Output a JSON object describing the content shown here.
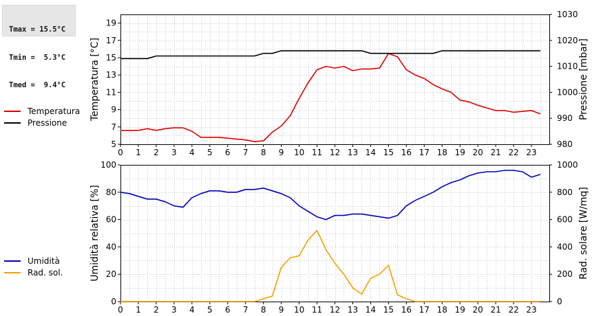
{
  "stats": {
    "lines": [
      "Tmax = 15.5°C",
      "Tmin =  5.3°C",
      "Tmed =  9.4°C"
    ]
  },
  "legend_top": [
    {
      "label": "Temperatura",
      "color": "#dd0000"
    },
    {
      "label": "Pressione",
      "color": "#000000"
    }
  ],
  "legend_bottom": [
    {
      "label": "Umidità",
      "color": "#0000bb"
    },
    {
      "label": "Rad. sol.",
      "color": "#f0a000"
    }
  ],
  "chart_data": [
    {
      "type": "line",
      "ylabel": "Temperatura [°C]",
      "y2label": "Pressione [mbar]",
      "xlim": [
        0,
        24
      ],
      "ylim": [
        5,
        20
      ],
      "y2lim": [
        980,
        1030
      ],
      "xticks": [
        0,
        1,
        2,
        3,
        4,
        5,
        6,
        7,
        8,
        9,
        10,
        11,
        12,
        13,
        14,
        15,
        16,
        17,
        18,
        19,
        20,
        21,
        22,
        23
      ],
      "yticks": [
        5,
        7,
        9,
        11,
        13,
        15,
        17,
        19
      ],
      "y2ticks": [
        980,
        990,
        1000,
        1010,
        1020,
        1030
      ],
      "grid": true,
      "series": [
        {
          "name": "Temperatura",
          "axis": "left",
          "color": "#dd0000",
          "x": [
            0,
            0.5,
            1,
            1.5,
            2,
            2.5,
            3,
            3.5,
            4,
            4.5,
            5,
            5.5,
            6,
            6.5,
            7,
            7.5,
            8,
            8.5,
            9,
            9.5,
            10,
            10.5,
            11,
            11.5,
            12,
            12.5,
            13,
            13.5,
            14,
            14.5,
            15,
            15.5,
            16,
            16.5,
            17,
            17.5,
            18,
            18.5,
            19,
            19.5,
            20,
            20.5,
            21,
            21.5,
            22,
            22.5,
            23,
            23.5
          ],
          "y": [
            6.6,
            6.6,
            6.6,
            6.8,
            6.6,
            6.8,
            6.9,
            6.9,
            6.5,
            5.8,
            5.8,
            5.8,
            5.7,
            5.6,
            5.5,
            5.3,
            5.4,
            6.4,
            7.1,
            8.3,
            10.3,
            12.1,
            13.6,
            14.0,
            13.8,
            14.0,
            13.5,
            13.7,
            13.7,
            13.8,
            15.5,
            15.1,
            13.6,
            13.0,
            12.6,
            11.9,
            11.4,
            11.0,
            10.1,
            9.9,
            9.5,
            9.2,
            8.9,
            8.9,
            8.7,
            8.8,
            8.9,
            8.5
          ]
        },
        {
          "name": "Pressione",
          "axis": "right",
          "color": "#000000",
          "x": [
            0,
            1,
            1.5,
            2,
            3,
            4,
            5,
            6,
            7,
            7.5,
            8,
            8.5,
            9,
            10,
            11,
            12,
            13,
            13.5,
            14,
            15,
            16,
            17,
            17.5,
            18,
            19,
            20,
            21,
            22,
            23,
            23.5
          ],
          "y": [
            1013,
            1013,
            1013,
            1014,
            1014,
            1014,
            1014,
            1014,
            1014,
            1014,
            1015,
            1015,
            1016,
            1016,
            1016,
            1016,
            1016,
            1016,
            1015,
            1015,
            1015,
            1015,
            1015,
            1016,
            1016,
            1016,
            1016,
            1016,
            1016,
            1016
          ]
        }
      ]
    },
    {
      "type": "line",
      "ylabel": "Umidità relativa [%]",
      "y2label": "Rad. solare [W/mq]",
      "xlim": [
        0,
        24
      ],
      "ylim": [
        0,
        100
      ],
      "y2lim": [
        0,
        1000
      ],
      "xticks": [
        0,
        1,
        2,
        3,
        4,
        5,
        6,
        7,
        8,
        9,
        10,
        11,
        12,
        13,
        14,
        15,
        16,
        17,
        18,
        19,
        20,
        21,
        22,
        23
      ],
      "yticks": [
        0,
        20,
        40,
        60,
        80,
        100
      ],
      "y2ticks": [
        0,
        200,
        400,
        600,
        800,
        1000
      ],
      "grid": true,
      "series": [
        {
          "name": "Umidità",
          "axis": "left",
          "color": "#0000bb",
          "x": [
            0,
            0.5,
            1,
            1.5,
            2,
            2.5,
            3,
            3.5,
            4,
            4.5,
            5,
            5.5,
            6,
            6.5,
            7,
            7.5,
            8,
            8.5,
            9,
            9.5,
            10,
            10.5,
            11,
            11.5,
            12,
            12.5,
            13,
            13.5,
            14,
            14.5,
            15,
            15.5,
            16,
            16.5,
            17,
            17.5,
            18,
            18.5,
            19,
            19.5,
            20,
            20.5,
            21,
            21.5,
            22,
            22.5,
            23,
            23.5
          ],
          "y": [
            80,
            79,
            77,
            75,
            75,
            73,
            70,
            69,
            76,
            79,
            81,
            81,
            80,
            80,
            82,
            82,
            83,
            81,
            79,
            76,
            70,
            66,
            62,
            60,
            63,
            63,
            64,
            64,
            63,
            62,
            61,
            63,
            70,
            74,
            77,
            80,
            84,
            87,
            89,
            92,
            94,
            95,
            95,
            96,
            96,
            95,
            91,
            93
          ]
        },
        {
          "name": "Rad. sol.",
          "axis": "right",
          "color": "#f0a000",
          "x": [
            0,
            1,
            2,
            3,
            4,
            5,
            6,
            7,
            7.5,
            8,
            8.5,
            9,
            9.5,
            10,
            10.5,
            11,
            11.5,
            12,
            12.5,
            13,
            13.5,
            14,
            14.5,
            15,
            15.5,
            16,
            16.5,
            17,
            18,
            19,
            20,
            21,
            22,
            23,
            23.5
          ],
          "y": [
            0,
            0,
            0,
            0,
            0,
            0,
            0,
            0,
            0,
            20,
            40,
            250,
            320,
            335,
            450,
            520,
            380,
            280,
            200,
            100,
            55,
            170,
            200,
            265,
            50,
            20,
            0,
            0,
            0,
            0,
            0,
            0,
            0,
            0,
            0
          ]
        }
      ]
    }
  ]
}
